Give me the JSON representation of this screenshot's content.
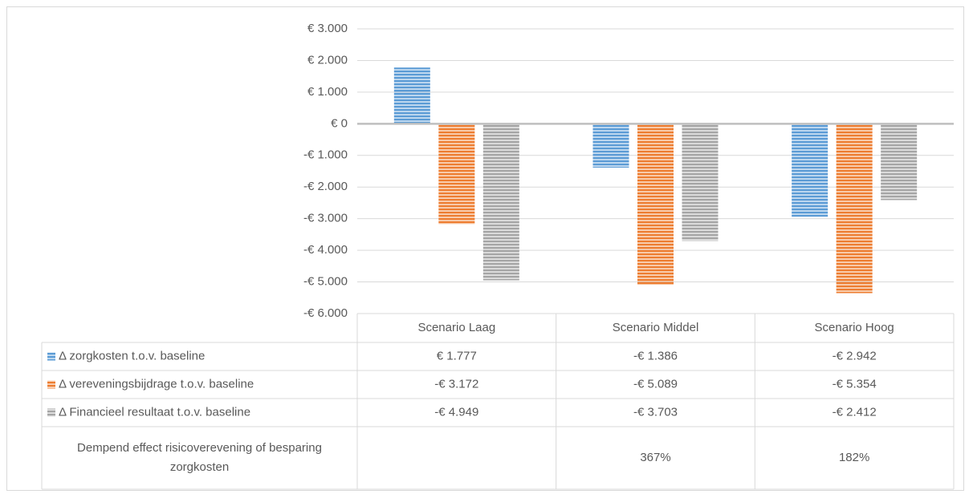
{
  "chart_data": {
    "type": "bar",
    "categories": [
      "Scenario Laag",
      "Scenario Middel",
      "Scenario Hoog"
    ],
    "series": [
      {
        "name": "Δ zorgkosten t.o.v. baseline",
        "color": "#5b9bd5",
        "values": [
          1777,
          -1386,
          -2942
        ],
        "value_labels": [
          "€ 1.777",
          "-€ 1.386",
          "-€ 2.942"
        ]
      },
      {
        "name": "Δ vereveningsbijdrage t.o.v. baseline",
        "color": "#ed7d31",
        "values": [
          -3172,
          -5089,
          -5354
        ],
        "value_labels": [
          "-€ 3.172",
          "-€ 5.089",
          "-€ 5.354"
        ]
      },
      {
        "name": "Δ Financieel resultaat t.o.v. baseline",
        "color": "#a5a5a5",
        "values": [
          -4949,
          -3703,
          -2412
        ],
        "value_labels": [
          "-€ 4.949",
          "-€ 3.703",
          "-€ 2.412"
        ]
      }
    ],
    "extra_row": {
      "label": "Dempend effect risicoverevening of besparing zorgkosten",
      "values": [
        null,
        367,
        182
      ],
      "value_labels": [
        null,
        "367%",
        "182%"
      ]
    },
    "ylim": [
      -6000,
      3000
    ],
    "yticks": [
      {
        "value": 3000,
        "label": "€ 3.000"
      },
      {
        "value": 2000,
        "label": "€ 2.000"
      },
      {
        "value": 1000,
        "label": "€ 1.000"
      },
      {
        "value": 0,
        "label": "€ 0"
      },
      {
        "value": -1000,
        "label": "-€ 1.000"
      },
      {
        "value": -2000,
        "label": "-€ 2.000"
      },
      {
        "value": -3000,
        "label": "-€ 3.000"
      },
      {
        "value": -4000,
        "label": "-€ 4.000"
      },
      {
        "value": -5000,
        "label": "-€ 5.000"
      },
      {
        "value": -6000,
        "label": "-€ 6.000"
      }
    ],
    "grid": true
  }
}
